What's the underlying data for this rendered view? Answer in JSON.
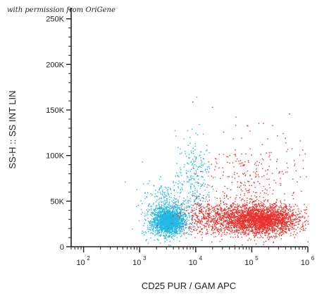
{
  "watermark": "with permission from OriGene",
  "chart_data": {
    "type": "scatter",
    "xlabel": "CD25 PUR / GAM APC",
    "ylabel": "SS-H :: SS INT LIN",
    "xscale": "log",
    "xlim": [
      60,
      1000000
    ],
    "ylim": [
      0,
      262144
    ],
    "x_ticks": [
      {
        "value": 100,
        "base": "10",
        "exp": "2"
      },
      {
        "value": 1000,
        "base": "10",
        "exp": "3"
      },
      {
        "value": 10000,
        "base": "10",
        "exp": "4"
      },
      {
        "value": 100000,
        "base": "10",
        "exp": "5"
      },
      {
        "value": 1000000,
        "base": "10",
        "exp": "6"
      }
    ],
    "y_ticks": [
      {
        "value": 0,
        "label": "0"
      },
      {
        "value": 50000,
        "label": "50K"
      },
      {
        "value": 100000,
        "label": "100K"
      },
      {
        "value": 150000,
        "label": "150K"
      },
      {
        "value": 200000,
        "label": "200K"
      },
      {
        "value": 250000,
        "label": "250K"
      }
    ],
    "series": [
      {
        "color": "#22b8e6",
        "population": "negative",
        "clusters": [
          {
            "center_x": 3200,
            "center_y": 28000,
            "spread_log_x": 0.14,
            "spread_y": 7000,
            "count": 1700
          },
          {
            "center_x": 3000,
            "center_y": 40000,
            "spread_log_x": 0.22,
            "spread_y": 15000,
            "count": 450
          },
          {
            "center_x": 9000,
            "center_y": 75000,
            "spread_log_x": 0.16,
            "spread_y": 25000,
            "count": 260
          }
        ]
      },
      {
        "color": "#e8302a",
        "population": "positive",
        "clusters": [
          {
            "center_x": 150000,
            "center_y": 30000,
            "spread_log_x": 0.32,
            "spread_y": 8000,
            "count": 2400
          },
          {
            "center_x": 25000,
            "center_y": 32000,
            "spread_log_x": 0.35,
            "spread_y": 9000,
            "count": 700
          },
          {
            "center_x": 100000,
            "center_y": 70000,
            "spread_log_x": 0.45,
            "spread_y": 28000,
            "count": 320
          }
        ]
      }
    ]
  }
}
